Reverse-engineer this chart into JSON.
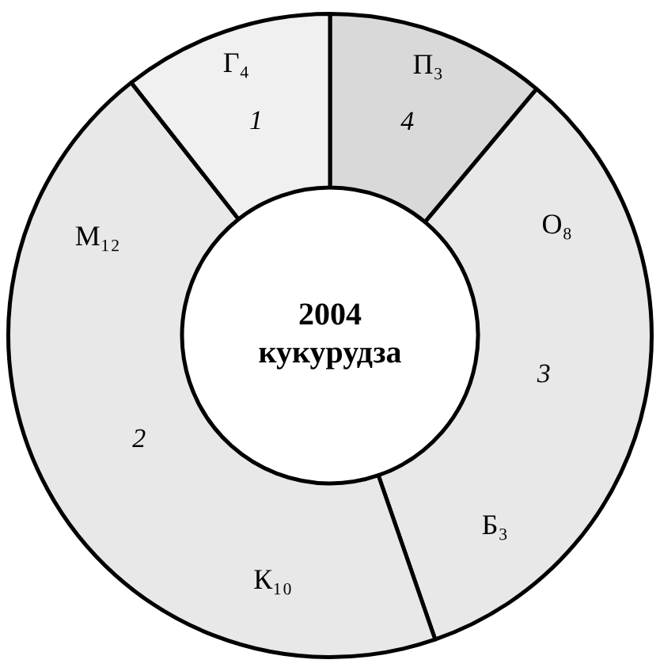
{
  "chart_data": {
    "type": "donut",
    "title": "2004",
    "subtitle": "кукурудза",
    "categories": [
      "4",
      "3",
      "2",
      "1"
    ],
    "values": [
      11.1,
      33.6,
      44.7,
      10.6
    ],
    "colors": [
      "#d9d9d9",
      "#e8e8e8",
      "#e8e8e8",
      "#f0f0f0"
    ],
    "annotations": [
      {
        "text": "П₃",
        "x": "4"
      },
      {
        "text": "О₈",
        "x": "3"
      },
      {
        "text": "Б₃",
        "x": "3"
      },
      {
        "text": "К₁₀",
        "x": "2"
      },
      {
        "text": "М₁₂",
        "x": "2"
      },
      {
        "text": "Г₄",
        "x": "1"
      }
    ],
    "legend": false
  }
}
